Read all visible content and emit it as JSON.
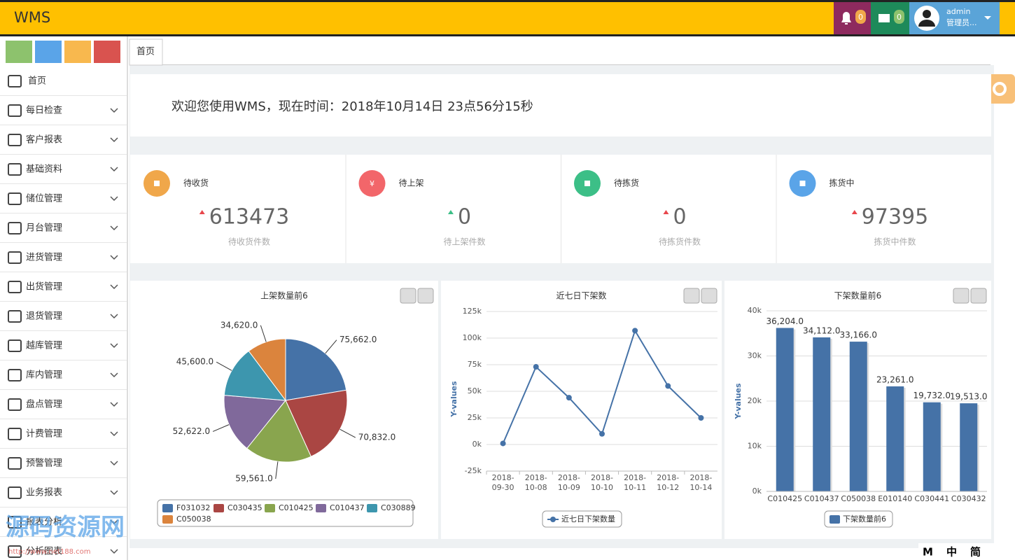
{
  "header": {
    "brand": "WMS",
    "notifications": 0,
    "messages": 0,
    "user": "admin",
    "role": "管理员..."
  },
  "sidebar": {
    "items": [
      "首页",
      "每日检查",
      "客户报表",
      "基础资料",
      "储位管理",
      "月台管理",
      "进货管理",
      "出货管理",
      "退货管理",
      "越库管理",
      "库内管理",
      "盘点管理",
      "计费管理",
      "预警管理",
      "业务报表",
      "报表分析",
      "分析图表"
    ]
  },
  "tabs": [
    "首页"
  ],
  "welcome": "欢迎您使用WMS，现在时间：2018年10月14日 23点56分15秒",
  "stats": [
    {
      "title": "待收货",
      "value": 613473,
      "caption": "待收货件数",
      "color": "#f0a74a",
      "trend_color": "#e8474c"
    },
    {
      "title": "待上架",
      "value": 0,
      "caption": "待上架件数",
      "color": "#f2666a",
      "trend_color": "#3cbf87",
      "icon": "¥"
    },
    {
      "title": "待拣货",
      "value": 0,
      "caption": "待拣货件数",
      "color": "#3cbf87",
      "trend_color": "#e8474c"
    },
    {
      "title": "拣货中",
      "value": 97395,
      "caption": "拣货中件数",
      "color": "#5aa4e8",
      "trend_color": "#e8474c"
    }
  ],
  "chart_data": [
    {
      "type": "pie",
      "title": "上架数量前6",
      "categories": [
        "F031032",
        "C030435",
        "C010425",
        "C010437",
        "C030889",
        "C050038"
      ],
      "values": [
        75662,
        70832,
        59561,
        52622,
        45600,
        34620
      ],
      "value_labels": [
        "75,662.0",
        "70,832.0",
        "59,561.0",
        "52,622.0",
        "45,600.0",
        "34,620.0"
      ],
      "colors": [
        "#4572a7",
        "#aa4643",
        "#89a54e",
        "#80699b",
        "#3d96ae",
        "#db843d"
      ]
    },
    {
      "type": "line",
      "title": "近七日下架数",
      "y_label": "Y-values",
      "categories": [
        "2018-09-30",
        "2018-10-08",
        "2018-10-09",
        "2018-10-10",
        "2018-10-11",
        "2018-10-12",
        "2018-10-14"
      ],
      "series": [
        {
          "name": "近七日下架数量",
          "color": "#4572a7",
          "values": [
            1000,
            73000,
            44000,
            10000,
            107000,
            55000,
            25000
          ]
        }
      ],
      "ylim": [
        -25000,
        125000
      ],
      "yticks": [
        {
          "value": -25000,
          "label": "-25k"
        },
        {
          "value": 0,
          "label": "0k"
        },
        {
          "value": 25000,
          "label": "25k"
        },
        {
          "value": 50000,
          "label": "50k"
        },
        {
          "value": 75000,
          "label": "75k"
        },
        {
          "value": 100000,
          "label": "100k"
        },
        {
          "value": 125000,
          "label": "125k"
        }
      ],
      "grid": true
    },
    {
      "type": "bar",
      "title": "下架数量前6",
      "y_label": "Y-values",
      "categories": [
        "C010425",
        "C010437",
        "C050038",
        "E010140",
        "C030441",
        "C030432"
      ],
      "series": [
        {
          "name": "下架数量前6",
          "color": "#4572a7",
          "values": [
            36204,
            34112,
            33166,
            23261,
            19732,
            19513
          ],
          "value_labels": [
            "36,204.0",
            "34,112.0",
            "33,166.0",
            "23,261.0",
            "19,732.0",
            "19,513.0"
          ]
        }
      ],
      "ylim": [
        0,
        40000
      ],
      "yticks": [
        {
          "value": 0,
          "label": "0k"
        },
        {
          "value": 10000,
          "label": "10k"
        },
        {
          "value": 20000,
          "label": "20k"
        },
        {
          "value": 30000,
          "label": "30k"
        },
        {
          "value": 40000,
          "label": "40k"
        }
      ],
      "grid": true
    }
  ],
  "watermark": {
    "title": "源码资源网",
    "url": "http://www.net188.com"
  },
  "ime": [
    "M",
    "中",
    "简"
  ]
}
